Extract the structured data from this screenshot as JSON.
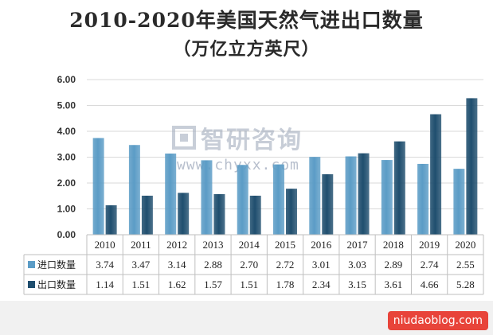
{
  "title_line1": "2010-2020年美国天然气进出口数量",
  "title_line2": "（万亿立方英尺）",
  "watermark": {
    "name": "智研咨询",
    "url": "www.chyxx.com"
  },
  "footer_badge": "niudaoblog.com",
  "colors": {
    "import": "#5b9cc6",
    "export": "#1f4e6e",
    "grid": "#d9d9d9",
    "table_line": "#bfbfbf"
  },
  "chart_data": {
    "type": "bar",
    "categories": [
      "2010",
      "2011",
      "2012",
      "2013",
      "2014",
      "2015",
      "2016",
      "2017",
      "2018",
      "2019",
      "2020"
    ],
    "series": [
      {
        "name": "进口数量",
        "values": [
          3.74,
          3.47,
          3.14,
          2.88,
          2.7,
          2.72,
          3.01,
          3.03,
          2.89,
          2.74,
          2.55
        ]
      },
      {
        "name": "出口数量",
        "values": [
          1.14,
          1.51,
          1.62,
          1.57,
          1.51,
          1.78,
          2.34,
          3.15,
          3.61,
          4.66,
          5.28
        ]
      }
    ],
    "ylim": [
      0,
      6
    ],
    "yticks": [
      "0.00",
      "1.00",
      "2.00",
      "3.00",
      "4.00",
      "5.00",
      "6.00"
    ],
    "grid": true,
    "legend": "data-table-left"
  }
}
